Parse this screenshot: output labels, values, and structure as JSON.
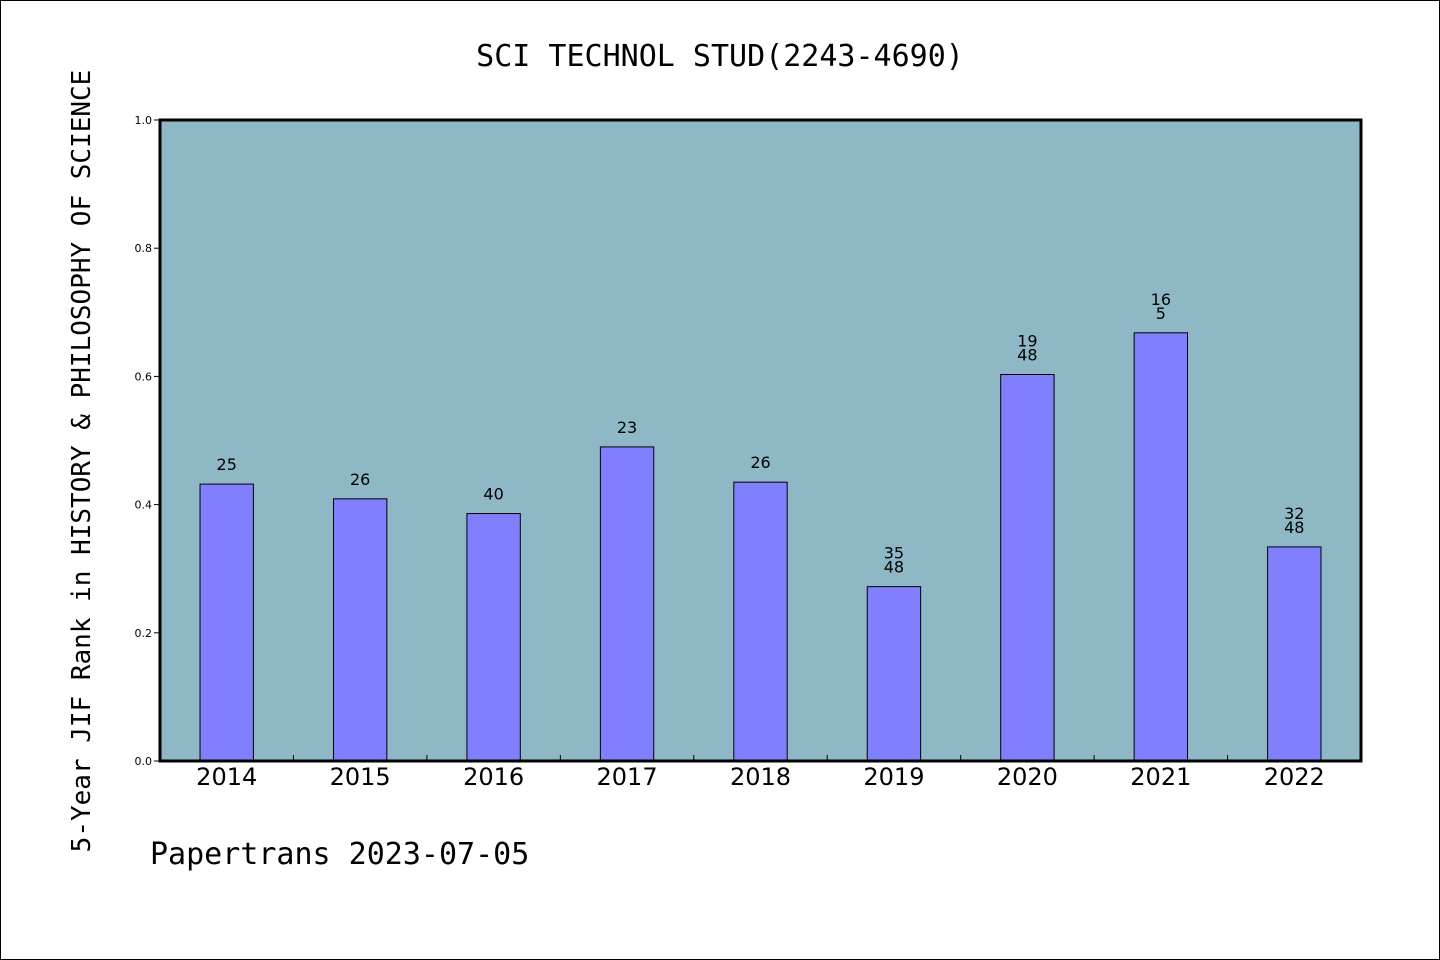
{
  "chart_data": {
    "type": "bar",
    "title": "SCI TECHNOL STUD(2243-4690)",
    "xlabel": "",
    "ylabel": "5-Year JIF Rank in HISTORY & PHILOSOPHY OF SCIENCE",
    "ylim": [
      0,
      1.0
    ],
    "yticks": [
      0.0,
      0.2,
      0.4,
      0.6,
      0.8,
      1.0
    ],
    "ytick_labels": [
      "0.0",
      "0.2",
      "0.4",
      "0.6",
      "0.8",
      "1.0"
    ],
    "categories": [
      "2014",
      "2015",
      "2016",
      "2017",
      "2018",
      "2019",
      "2020",
      "2021",
      "2022"
    ],
    "values": [
      0.432,
      0.409,
      0.386,
      0.49,
      0.435,
      0.272,
      0.603,
      0.668,
      0.334
    ],
    "bar_labels": [
      [
        "25"
      ],
      [
        "26"
      ],
      [
        "40"
      ],
      [
        "23"
      ],
      [
        "26"
      ],
      [
        "35",
        "48"
      ],
      [
        "19",
        "48"
      ],
      [
        "16",
        "5"
      ],
      [
        "32",
        "48"
      ]
    ],
    "grid": false,
    "colors": {
      "plot_background": "#8fb8c6",
      "bar_fill": "#8080ff",
      "bar_edge": "#000000"
    }
  },
  "footer": "Papertrans 2023-07-05"
}
